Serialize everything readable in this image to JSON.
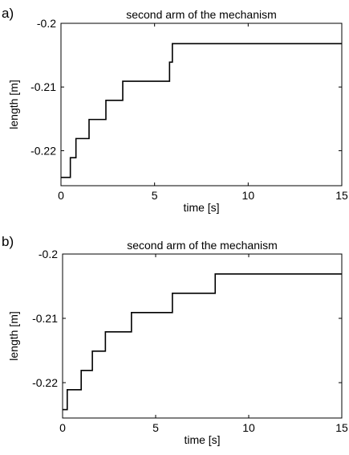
{
  "chart_data": [
    {
      "type": "line",
      "panel_label": "a)",
      "title": "second arm of the mechanism",
      "xlabel": "time [s]",
      "ylabel": "length [m]",
      "xlim": [
        0,
        15
      ],
      "ylim": [
        -0.2255,
        -0.2
      ],
      "xticks": [
        0,
        5,
        10,
        15
      ],
      "xtick_labels": [
        "0",
        "5",
        "10",
        "15"
      ],
      "yticks": [
        -0.2,
        -0.21,
        -0.22
      ],
      "ytick_labels": [
        "-0.2",
        "-0.21",
        "-0.22"
      ],
      "grid": false,
      "step": "post",
      "series": [
        {
          "x": [
            0,
            0.5,
            0.8,
            1.5,
            2.4,
            3.3,
            5.8,
            5.95,
            15
          ],
          "y": [
            -0.2242,
            -0.2211,
            -0.2181,
            -0.2151,
            -0.2121,
            -0.2091,
            -0.2061,
            -0.2032,
            -0.2032
          ]
        }
      ]
    },
    {
      "type": "line",
      "panel_label": "b)",
      "title": "second arm of the mechanism",
      "xlabel": "time [s]",
      "ylabel": "length [m]",
      "xlim": [
        0,
        15
      ],
      "ylim": [
        -0.2255,
        -0.2
      ],
      "xticks": [
        0,
        5,
        10,
        15
      ],
      "xtick_labels": [
        "0",
        "5",
        "10",
        "15"
      ],
      "yticks": [
        -0.2,
        -0.21,
        -0.22
      ],
      "ytick_labels": [
        "-0.2",
        "-0.21",
        "-0.22"
      ],
      "grid": false,
      "step": "post",
      "series": [
        {
          "x": [
            0,
            0.25,
            1.0,
            1.6,
            2.3,
            3.7,
            5.9,
            8.2,
            15
          ],
          "y": [
            -0.2242,
            -0.2211,
            -0.2181,
            -0.2151,
            -0.2121,
            -0.2091,
            -0.2061,
            -0.2031,
            -0.2031
          ]
        }
      ]
    }
  ]
}
